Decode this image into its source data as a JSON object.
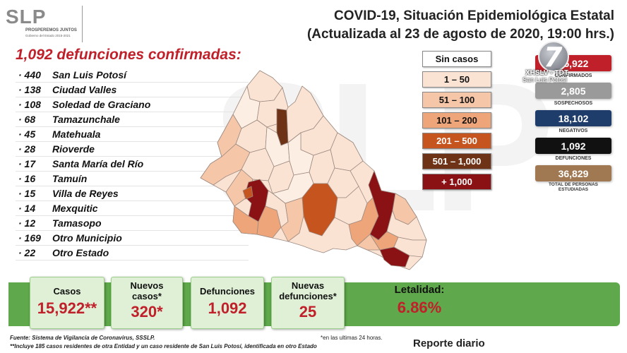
{
  "logo": {
    "mark": "SLP",
    "line1": "PROSPEREMOS JUNTOS",
    "line2": "Gobierno del Estado 2015-2021"
  },
  "header": {
    "title_line1": "COVID-19, Situación Epidemiológica Estatal",
    "title_line2": "(Actualizada al 23 de agosto de 2020, 19:00 hrs.)"
  },
  "deaths": {
    "title": "1,092 defunciones confirmadas:",
    "rows": [
      {
        "num": "· 440",
        "name": "San Luis Potosí"
      },
      {
        "num": "· 138",
        "name": "Ciudad Valles"
      },
      {
        "num": "· 108",
        "name": "Soledad de Graciano"
      },
      {
        "num": "· 68",
        "name": "Tamazunchale"
      },
      {
        "num": "· 45",
        "name": "Matehuala"
      },
      {
        "num": "· 28",
        "name": "Rioverde"
      },
      {
        "num": "· 17",
        "name": "Santa María del Río"
      },
      {
        "num": "· 16",
        "name": "Tamuín"
      },
      {
        "num": "· 15",
        "name": "Villa de Reyes"
      },
      {
        "num": "· 14",
        "name": "Mexquitic"
      },
      {
        "num": "· 12",
        "name": "Tamasopo"
      },
      {
        "num": "· 169",
        "name": "Otro Municipio"
      },
      {
        "num": "· 22",
        "name": "Otro Estado"
      }
    ]
  },
  "legend": [
    {
      "label": "Sin casos",
      "bg": "#ffffff",
      "fg": "#111111"
    },
    {
      "label": "1 – 50",
      "bg": "#fbe3d4",
      "fg": "#111111"
    },
    {
      "label": "51 – 100",
      "bg": "#f6c6a8",
      "fg": "#111111"
    },
    {
      "label": "101 – 200",
      "bg": "#eea57a",
      "fg": "#111111"
    },
    {
      "label": "201 – 500",
      "bg": "#c5541e",
      "fg": "#ffffff"
    },
    {
      "label": "501 – 1,000",
      "bg": "#6e3316",
      "fg": "#ffffff"
    },
    {
      "label": "+ 1,000",
      "bg": "#8a1215",
      "fg": "#ffffff"
    }
  ],
  "stats": {
    "confirmados": {
      "value": "15,922",
      "label": "CONFIRMADOS",
      "color": "#c0202a"
    },
    "sospechosos": {
      "value": "2,805",
      "label": "SOSPECHOSOS",
      "color": "#9a9a9a"
    },
    "negativos": {
      "value": "18,102",
      "label": "NEGATIVOS",
      "color": "#1f3d6b"
    },
    "defunciones": {
      "value": "1,092",
      "label": "DEFUNCIONES",
      "color": "#111111"
    },
    "estudiadas": {
      "value": "36,829",
      "label": "TOTAL DE PERSONAS ESTUDIADAS",
      "color": "#a07852"
    }
  },
  "tv": {
    "number": "7",
    "call": "XHSLV - TDT",
    "city": "San Luis Potosí"
  },
  "bottom": {
    "casos": {
      "label": "Casos",
      "value": "15,922**"
    },
    "nuevos_casos": {
      "label": "Nuevos casos*",
      "value": "320*"
    },
    "defunciones": {
      "label": "Defunciones",
      "value": "1,092"
    },
    "nuevas_defunciones": {
      "label": "Nuevas defunciones*",
      "value": "25"
    },
    "letalidad": {
      "label": "Letalidad:",
      "value": "6.86%"
    }
  },
  "footer": {
    "source": "Fuente: Sistema de Vigilancia de Coronavirus, SSSLP.",
    "note": "**Incluye 185 casos residentes de otra Entidad y un caso residente de San Luis Potosí, identificada en otro Estado",
    "last24": "*en las ultimas 24 horas.",
    "report": "Reporte diario"
  },
  "colors": {
    "accent_red": "#c0202a",
    "bar_green": "#5fa84b",
    "card_green": "#dff0d6"
  }
}
